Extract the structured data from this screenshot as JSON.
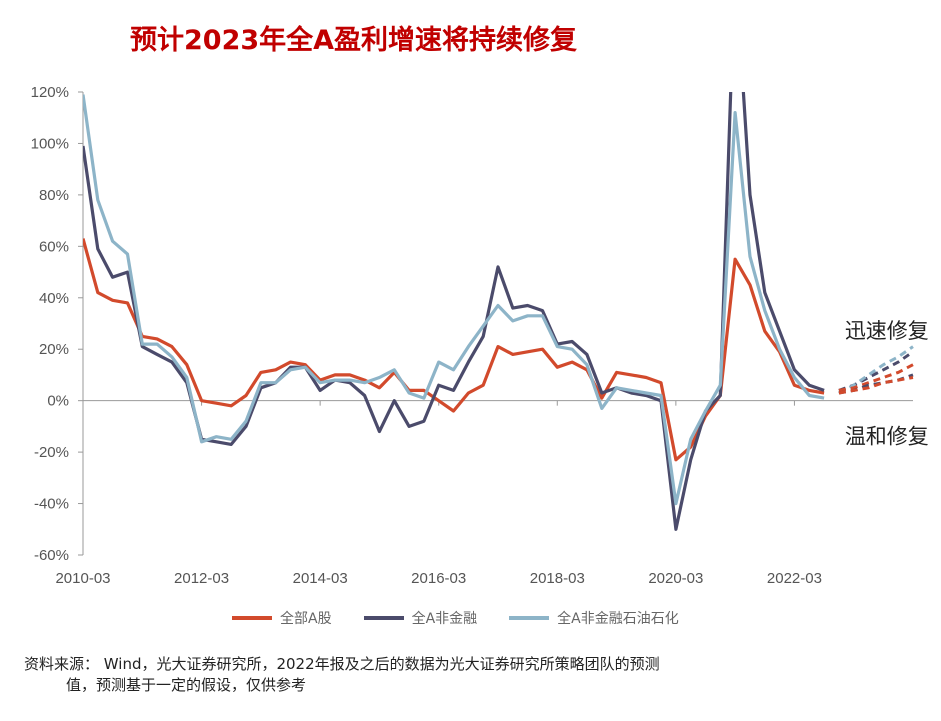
{
  "title": "预计2023年全A盈利增速将持续修复",
  "chart_data": {
    "type": "line",
    "x_tick_labels": [
      "2010-03",
      "2012-03",
      "2014-03",
      "2016-03",
      "2018-03",
      "2020-03",
      "2022-03"
    ],
    "y_tick_labels": [
      "-60%",
      "-40%",
      "-20%",
      "0%",
      "20%",
      "40%",
      "60%",
      "80%",
      "100%",
      "120%"
    ],
    "ylim": [
      -60,
      120
    ],
    "x_range": [
      "2010-03",
      "2023-12"
    ],
    "quarters": [
      "2010-03",
      "2010-06",
      "2010-09",
      "2010-12",
      "2011-03",
      "2011-06",
      "2011-09",
      "2011-12",
      "2012-03",
      "2012-06",
      "2012-09",
      "2012-12",
      "2013-03",
      "2013-06",
      "2013-09",
      "2013-12",
      "2014-03",
      "2014-06",
      "2014-09",
      "2014-12",
      "2015-03",
      "2015-06",
      "2015-09",
      "2015-12",
      "2016-03",
      "2016-06",
      "2016-09",
      "2016-12",
      "2017-03",
      "2017-06",
      "2017-09",
      "2017-12",
      "2018-03",
      "2018-06",
      "2018-09",
      "2018-12",
      "2019-03",
      "2019-06",
      "2019-09",
      "2019-12",
      "2020-03",
      "2020-06",
      "2020-09",
      "2020-12",
      "2021-03",
      "2021-06",
      "2021-09",
      "2021-12",
      "2022-03",
      "2022-06",
      "2022-09"
    ],
    "series": [
      {
        "name": "全部A股",
        "color": "#d24a2c",
        "values": [
          63,
          42,
          39,
          38,
          25,
          24,
          21,
          14,
          0,
          -1,
          -2,
          2,
          11,
          12,
          15,
          14,
          8,
          10,
          10,
          8,
          5,
          11,
          4,
          4,
          0,
          -4,
          3,
          6,
          21,
          18,
          19,
          20,
          13,
          15,
          12,
          1,
          11,
          10,
          9,
          7,
          -23,
          -18,
          -6,
          2,
          55,
          45,
          27,
          19,
          6,
          4,
          3
        ]
      },
      {
        "name": "全A非金融",
        "color": "#4b4b6b",
        "values": [
          99,
          59,
          48,
          50,
          21,
          18,
          15,
          7,
          -15,
          -16,
          -17,
          -10,
          5,
          7,
          13,
          13,
          4,
          8,
          7,
          2,
          -12,
          0,
          -10,
          -8,
          6,
          4,
          15,
          25,
          52,
          36,
          37,
          35,
          22,
          23,
          18,
          3,
          5,
          3,
          2,
          0,
          -50,
          -23,
          -4,
          2,
          170,
          80,
          42,
          27,
          12,
          6,
          4
        ]
      },
      {
        "name": "全A非金融石油石化",
        "color": "#8db4c8",
        "values": [
          119,
          78,
          62,
          57,
          22,
          22,
          17,
          9,
          -16,
          -14,
          -15,
          -8,
          7,
          7,
          12,
          13,
          7,
          8,
          8,
          7,
          9,
          12,
          3,
          1,
          15,
          12,
          21,
          29,
          37,
          31,
          33,
          33,
          21,
          20,
          14,
          -3,
          5,
          4,
          3,
          2,
          -40,
          -15,
          -4,
          6,
          112,
          56,
          35,
          20,
          9,
          2,
          1
        ]
      },
      {
        "name": "迅速修复",
        "color": "#4b4b6b",
        "dashed": true,
        "values": [
          [
            2022.75,
            4
          ],
          [
            2023.0,
            6
          ],
          [
            2023.25,
            9
          ],
          [
            2023.5,
            12
          ],
          [
            2023.75,
            15
          ],
          [
            2024.0,
            19
          ]
        ]
      },
      {
        "name": "迅速修复b",
        "color": "#8db4c8",
        "dashed": true,
        "values": [
          [
            2022.75,
            3
          ],
          [
            2023.0,
            6
          ],
          [
            2023.25,
            10
          ],
          [
            2023.5,
            14
          ],
          [
            2023.75,
            17
          ],
          [
            2024.0,
            21
          ]
        ]
      },
      {
        "name": "温和修复",
        "color": "#d24a2c",
        "dashed": true,
        "values": [
          [
            2022.75,
            4
          ],
          [
            2023.0,
            5
          ],
          [
            2023.25,
            7
          ],
          [
            2023.5,
            9
          ],
          [
            2023.75,
            11
          ],
          [
            2024.0,
            14
          ]
        ]
      },
      {
        "name": "温和修复b",
        "color": "#4b4b6b",
        "dashed": true,
        "values": [
          [
            2022.75,
            3
          ],
          [
            2023.0,
            4
          ],
          [
            2023.25,
            6
          ],
          [
            2023.5,
            7
          ],
          [
            2023.75,
            8
          ],
          [
            2024.0,
            10
          ]
        ]
      },
      {
        "name": "温和修复c",
        "color": "#d24a2c",
        "dashed": true,
        "values": [
          [
            2022.75,
            3
          ],
          [
            2023.0,
            4
          ],
          [
            2023.25,
            5
          ],
          [
            2023.5,
            7
          ],
          [
            2023.75,
            8
          ],
          [
            2024.0,
            9
          ]
        ]
      }
    ],
    "annotations": [
      {
        "text": "迅速修复",
        "x": 2022.85,
        "y": 27
      },
      {
        "text": "温和修复",
        "x": 2022.85,
        "y": -14
      }
    ],
    "legend_placement": "bottom"
  },
  "legend": [
    {
      "label": "全部A股",
      "color": "#d24a2c"
    },
    {
      "label": "全A非金融",
      "color": "#4b4b6b"
    },
    {
      "label": "全A非金融石油石化",
      "color": "#8db4c8"
    }
  ],
  "source_line1": "资料来源： Wind，光大证券研究所，2022年报及之后的数据为光大证券研究所策略团队的预测",
  "source_line2": "值，预测基于一定的假设，仅供参考"
}
